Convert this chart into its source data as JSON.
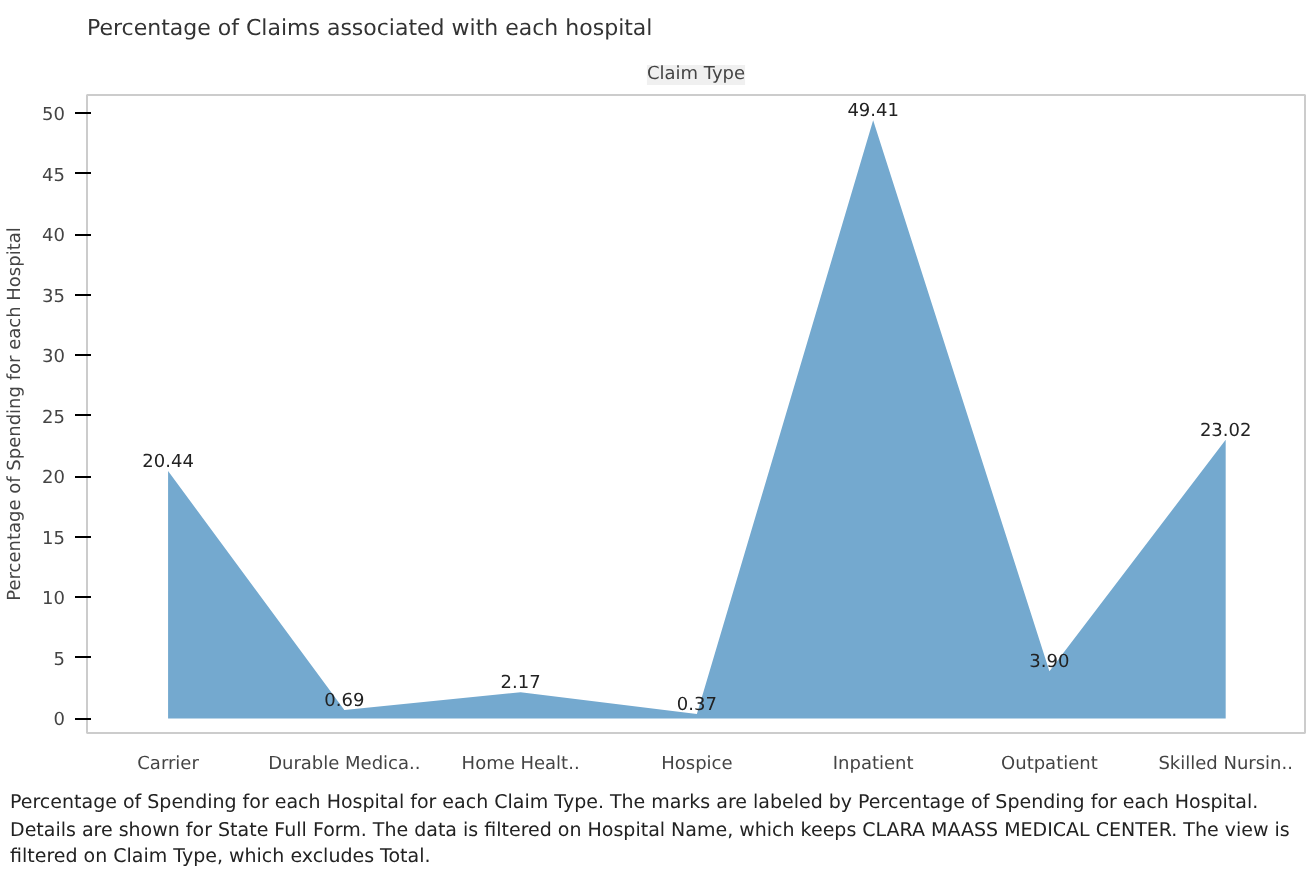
{
  "chart_data": {
    "type": "area",
    "title": "Percentage of Claims associated with each hospital",
    "xlabel": "Claim Type",
    "ylabel": "Percentage of Spending for each Hospital",
    "categories": [
      "Carrier",
      "Durable Medica..",
      "Home Healt..",
      "Hospice",
      "Inpatient",
      "Outpatient",
      "Skilled Nursin.."
    ],
    "values": [
      20.44,
      0.69,
      2.17,
      0.37,
      49.41,
      3.9,
      23.02
    ],
    "value_labels": [
      "20.44",
      "0.69",
      "2.17",
      "0.37",
      "49.41",
      "3.90",
      "23.02"
    ],
    "color": "#74a9cf",
    "ylim": [
      -1.2,
      51.5
    ],
    "yticks": [
      0,
      5,
      10,
      15,
      20,
      25,
      30,
      35,
      40,
      45,
      50
    ],
    "grid": false,
    "annotations": [
      "Percentage of Spending for each Hospital for each Claim Type.  The marks are labeled by Percentage of Spending for each Hospital. Details are shown for State Full Form. The data is filtered on Hospital Name, which keeps CLARA MAASS MEDICAL CENTER. The view is filtered on Claim Type, which excludes Total."
    ]
  }
}
